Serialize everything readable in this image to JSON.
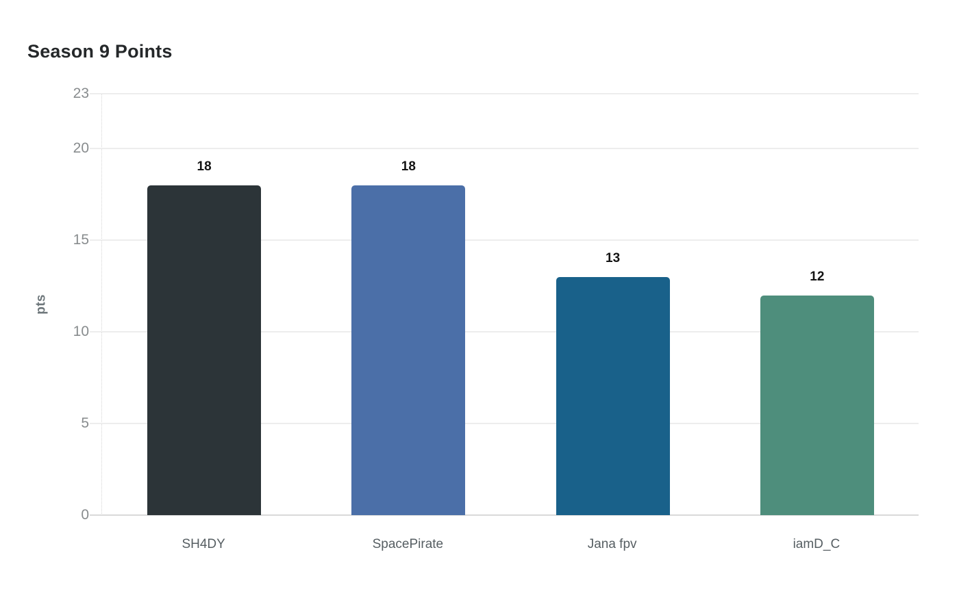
{
  "chart_data": {
    "type": "bar",
    "title": "Season 9 Points",
    "xlabel": "",
    "ylabel": "pts",
    "categories": [
      "SH4DY",
      "SpacePirate",
      "Jana fpv",
      "iamD_C"
    ],
    "values": [
      18,
      18,
      13,
      12
    ],
    "value_labels": [
      "18",
      "18",
      "13",
      "12"
    ],
    "bar_colors": [
      "#2c3438",
      "#4b6fa8",
      "#19618a",
      "#4e8e7c"
    ],
    "yticks": [
      0,
      5,
      10,
      15,
      20,
      23
    ],
    "ylim": [
      0,
      23
    ],
    "grid": true,
    "legend": false,
    "background": "#ffffff",
    "gridline_color": "#ededed",
    "baseline_color": "#d9d9d9",
    "axis_dotted_color": "#d4d4d4",
    "tick_label_color": "#888c8e",
    "category_label_color": "#565e62",
    "value_label_color": "#141414",
    "title_color": "#25282a"
  }
}
